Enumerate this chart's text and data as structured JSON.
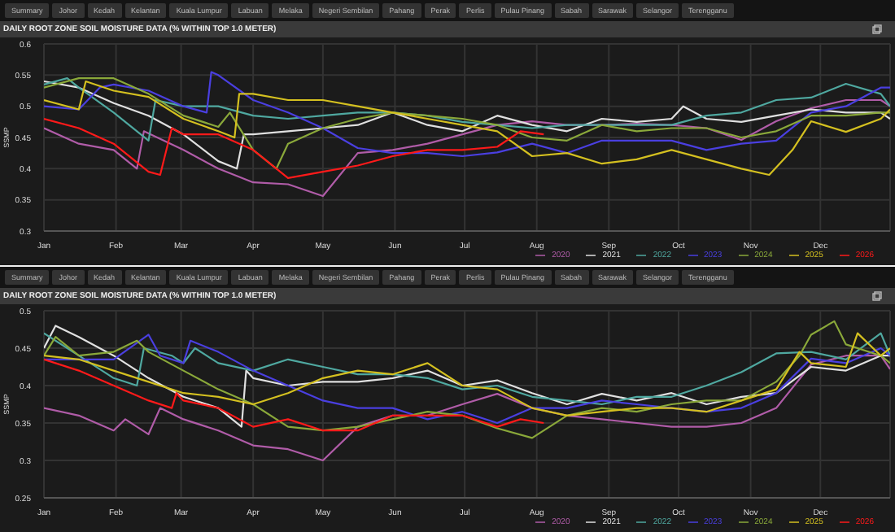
{
  "chart_data": [
    {
      "type": "line",
      "title": "DAILY ROOT ZONE SOIL MOISTURE DATA (% WITHIN TOP 1.0 METER)",
      "ylabel": "SSMP",
      "annotations": [
        "Summary",
        "Johor",
        "Kedah",
        "Kelantan",
        "Kuala Lumpur",
        "Labuan",
        "Melaka",
        "Negeri Sembilan",
        "Pahang",
        "Perak",
        "Perlis",
        "Pulau Pinang",
        "Sabah",
        "Sarawak",
        "Selangor",
        "Terengganu"
      ],
      "xlim": [
        "--01-01",
        "--12-31"
      ],
      "xticks": [
        {
          "value": "--01-01",
          "label": "Jan"
        },
        {
          "value": "--02-01",
          "label": "Feb"
        },
        {
          "value": "--03-01",
          "label": "Mar"
        },
        {
          "value": "--04-01",
          "label": "Apr"
        },
        {
          "value": "--05-01",
          "label": "May"
        },
        {
          "value": "--06-01",
          "label": "Jun"
        },
        {
          "value": "--07-01",
          "label": "Jul"
        },
        {
          "value": "--08-01",
          "label": "Aug"
        },
        {
          "value": "--09-01",
          "label": "Sep"
        },
        {
          "value": "--10-01",
          "label": "Oct"
        },
        {
          "value": "--11-01",
          "label": "Nov"
        },
        {
          "value": "--12-01",
          "label": "Dec"
        }
      ],
      "ylim": [
        0.3,
        0.6
      ],
      "yticks": [
        0.3,
        0.35,
        0.4,
        0.45,
        0.5,
        0.55,
        0.6
      ],
      "grid": true,
      "legend": "bottom right",
      "series": [
        {
          "name": "2020",
          "color": "#b05ca8",
          "x": [
            "--01-01",
            "--01-16",
            "--01-31",
            "--02-10",
            "--02-13",
            "--03-02",
            "--03-17",
            "--04-01",
            "--04-16",
            "--05-01",
            "--05-16",
            "--05-31",
            "--06-15",
            "--06-30",
            "--07-15",
            "--07-30",
            "--08-14",
            "--08-29",
            "--09-13",
            "--09-28",
            "--10-13",
            "--10-28",
            "--11-12",
            "--11-27",
            "--12-12",
            "--12-27",
            "--12-31"
          ],
          "values": [
            0.465,
            0.44,
            0.43,
            0.4,
            0.46,
            0.43,
            0.4,
            0.378,
            0.375,
            0.356,
            0.425,
            0.43,
            0.44,
            0.455,
            0.47,
            0.476,
            0.47,
            0.47,
            0.472,
            0.47,
            0.465,
            0.446,
            0.476,
            0.497,
            0.51,
            0.51,
            0.5
          ]
        },
        {
          "name": "2021",
          "color": "#e0e0e0",
          "x": [
            "--01-01",
            "--01-16",
            "--01-31",
            "--02-15",
            "--03-02",
            "--03-17",
            "--03-25",
            "--03-28",
            "--04-01",
            "--04-16",
            "--05-01",
            "--05-16",
            "--05-31",
            "--06-15",
            "--06-30",
            "--07-15",
            "--07-30",
            "--08-14",
            "--08-29",
            "--09-13",
            "--09-28",
            "--10-03",
            "--10-13",
            "--10-28",
            "--11-12",
            "--11-27",
            "--12-12",
            "--12-27",
            "--12-31"
          ],
          "values": [
            0.54,
            0.53,
            0.505,
            0.485,
            0.455,
            0.412,
            0.4,
            0.455,
            0.455,
            0.46,
            0.465,
            0.47,
            0.49,
            0.47,
            0.46,
            0.485,
            0.47,
            0.46,
            0.48,
            0.475,
            0.48,
            0.5,
            0.48,
            0.475,
            0.485,
            0.495,
            0.49,
            0.49,
            0.48
          ]
        },
        {
          "name": "2022",
          "color": "#4fa8a0",
          "x": [
            "--01-01",
            "--01-11",
            "--01-16",
            "--01-31",
            "--02-15",
            "--02-18",
            "--03-02",
            "--03-17",
            "--04-01",
            "--04-16",
            "--05-01",
            "--05-16",
            "--05-31",
            "--06-15",
            "--06-30",
            "--07-15",
            "--07-30",
            "--08-14",
            "--08-29",
            "--09-13",
            "--09-28",
            "--10-13",
            "--10-28",
            "--11-12",
            "--11-27",
            "--12-12",
            "--12-27",
            "--12-31"
          ],
          "values": [
            0.535,
            0.545,
            0.53,
            0.49,
            0.445,
            0.51,
            0.5,
            0.5,
            0.485,
            0.48,
            0.485,
            0.49,
            0.49,
            0.485,
            0.475,
            0.47,
            0.465,
            0.47,
            0.47,
            0.47,
            0.47,
            0.485,
            0.49,
            0.51,
            0.514,
            0.536,
            0.52,
            0.5
          ]
        },
        {
          "name": "2023",
          "color": "#4a3fe0",
          "x": [
            "--01-01",
            "--01-16",
            "--01-25",
            "--01-31",
            "--02-15",
            "--03-02",
            "--03-12",
            "--03-14",
            "--03-17",
            "--04-01",
            "--04-16",
            "--05-01",
            "--05-16",
            "--05-31",
            "--06-15",
            "--06-30",
            "--07-15",
            "--07-30",
            "--08-14",
            "--08-29",
            "--09-13",
            "--09-28",
            "--10-13",
            "--10-28",
            "--11-12",
            "--11-27",
            "--12-12",
            "--12-27",
            "--12-31"
          ],
          "values": [
            0.5,
            0.495,
            0.53,
            0.535,
            0.525,
            0.5,
            0.49,
            0.555,
            0.55,
            0.51,
            0.49,
            0.465,
            0.433,
            0.425,
            0.425,
            0.42,
            0.426,
            0.44,
            0.425,
            0.445,
            0.445,
            0.445,
            0.43,
            0.44,
            0.445,
            0.49,
            0.5,
            0.53,
            0.53
          ]
        },
        {
          "name": "2024",
          "color": "#8aa83a",
          "x": [
            "--01-01",
            "--01-16",
            "--01-31",
            "--02-15",
            "--03-02",
            "--03-17",
            "--03-22",
            "--04-01",
            "--04-11",
            "--04-16",
            "--05-01",
            "--05-16",
            "--05-31",
            "--06-15",
            "--06-30",
            "--07-15",
            "--07-30",
            "--08-14",
            "--08-29",
            "--09-13",
            "--09-28",
            "--10-13",
            "--10-28",
            "--11-12",
            "--11-27",
            "--12-12",
            "--12-27",
            "--12-31"
          ],
          "values": [
            0.53,
            0.545,
            0.545,
            0.52,
            0.485,
            0.467,
            0.49,
            0.43,
            0.4,
            0.44,
            0.465,
            0.48,
            0.49,
            0.485,
            0.48,
            0.47,
            0.45,
            0.445,
            0.47,
            0.46,
            0.465,
            0.465,
            0.45,
            0.46,
            0.485,
            0.485,
            0.49,
            0.49
          ]
        },
        {
          "name": "2025",
          "color": "#d4c020",
          "x": [
            "--01-01",
            "--01-16",
            "--01-19",
            "--01-31",
            "--02-15",
            "--03-02",
            "--03-17",
            "--03-24",
            "--03-26",
            "--04-01",
            "--04-16",
            "--05-01",
            "--05-16",
            "--05-31",
            "--06-15",
            "--06-30",
            "--07-15",
            "--07-30",
            "--08-14",
            "--08-29",
            "--09-13",
            "--09-28",
            "--10-13",
            "--10-28",
            "--11-09",
            "--11-19",
            "--11-27",
            "--12-12",
            "--12-27",
            "--12-31"
          ],
          "values": [
            0.51,
            0.495,
            0.54,
            0.525,
            0.515,
            0.48,
            0.46,
            0.45,
            0.52,
            0.52,
            0.51,
            0.51,
            0.5,
            0.49,
            0.48,
            0.47,
            0.46,
            0.42,
            0.425,
            0.408,
            0.415,
            0.43,
            0.415,
            0.4,
            0.39,
            0.43,
            0.476,
            0.459,
            0.48,
            0.495
          ]
        },
        {
          "name": "2026",
          "color": "#ff1a1a",
          "x": [
            "--01-01",
            "--01-16",
            "--01-31",
            "--02-15",
            "--02-20",
            "--02-25",
            "--03-02",
            "--03-17",
            "--04-01",
            "--04-16",
            "--05-01",
            "--05-16",
            "--05-31",
            "--06-15",
            "--06-30",
            "--07-15",
            "--07-25",
            "--08-04"
          ],
          "values": [
            0.48,
            0.465,
            0.44,
            0.395,
            0.39,
            0.465,
            0.455,
            0.455,
            0.43,
            0.385,
            0.395,
            0.405,
            0.42,
            0.43,
            0.43,
            0.435,
            0.46,
            0.455
          ]
        }
      ]
    },
    {
      "type": "line",
      "title": "DAILY ROOT ZONE SOIL MOISTURE DATA (% WITHIN TOP 1.0 METER)",
      "ylabel": "SSMP",
      "annotations": [
        "Summary",
        "Johor",
        "Kedah",
        "Kelantan",
        "Kuala Lumpur",
        "Labuan",
        "Melaka",
        "Negeri Sembilan",
        "Pahang",
        "Perak",
        "Perlis",
        "Pulau Pinang",
        "Sabah",
        "Sarawak",
        "Selangor",
        "Terengganu"
      ],
      "xlim": [
        "--01-01",
        "--12-31"
      ],
      "xticks": [
        {
          "value": "--01-01",
          "label": "Jan"
        },
        {
          "value": "--02-01",
          "label": "Feb"
        },
        {
          "value": "--03-01",
          "label": "Mar"
        },
        {
          "value": "--04-01",
          "label": "Apr"
        },
        {
          "value": "--05-01",
          "label": "May"
        },
        {
          "value": "--06-01",
          "label": "Jun"
        },
        {
          "value": "--07-01",
          "label": "Jul"
        },
        {
          "value": "--08-01",
          "label": "Aug"
        },
        {
          "value": "--09-01",
          "label": "Sep"
        },
        {
          "value": "--10-01",
          "label": "Oct"
        },
        {
          "value": "--11-01",
          "label": "Nov"
        },
        {
          "value": "--12-01",
          "label": "Dec"
        }
      ],
      "ylim": [
        0.25,
        0.5
      ],
      "yticks": [
        0.25,
        0.3,
        0.35,
        0.4,
        0.45,
        0.5
      ],
      "grid": true,
      "legend": "bottom right",
      "series": [
        {
          "name": "2020",
          "color": "#b05ca8",
          "x": [
            "--01-01",
            "--01-16",
            "--01-31",
            "--02-05",
            "--02-15",
            "--02-20",
            "--03-02",
            "--03-17",
            "--04-01",
            "--04-16",
            "--05-01",
            "--05-16",
            "--05-31",
            "--06-15",
            "--06-30",
            "--07-15",
            "--07-30",
            "--08-14",
            "--08-29",
            "--09-13",
            "--09-28",
            "--10-13",
            "--10-28",
            "--11-12",
            "--11-27",
            "--12-12",
            "--12-27",
            "--12-31"
          ],
          "values": [
            0.37,
            0.36,
            0.34,
            0.355,
            0.335,
            0.37,
            0.355,
            0.34,
            0.32,
            0.315,
            0.3,
            0.345,
            0.36,
            0.36,
            0.375,
            0.389,
            0.37,
            0.36,
            0.355,
            0.35,
            0.345,
            0.345,
            0.35,
            0.37,
            0.428,
            0.44,
            0.44,
            0.422
          ]
        },
        {
          "name": "2021",
          "color": "#e0e0e0",
          "x": [
            "--01-01",
            "--01-06",
            "--01-16",
            "--01-31",
            "--02-15",
            "--03-02",
            "--03-17",
            "--03-27",
            "--03-29",
            "--04-01",
            "--04-16",
            "--05-01",
            "--05-16",
            "--05-31",
            "--06-15",
            "--06-30",
            "--07-15",
            "--07-30",
            "--08-14",
            "--08-29",
            "--09-13",
            "--09-28",
            "--10-13",
            "--10-28",
            "--11-12",
            "--11-27",
            "--12-12",
            "--12-27",
            "--12-31"
          ],
          "values": [
            0.45,
            0.48,
            0.465,
            0.44,
            0.41,
            0.385,
            0.37,
            0.345,
            0.42,
            0.41,
            0.4,
            0.405,
            0.405,
            0.41,
            0.42,
            0.4,
            0.407,
            0.39,
            0.375,
            0.389,
            0.38,
            0.39,
            0.375,
            0.385,
            0.39,
            0.425,
            0.42,
            0.44,
            0.44
          ]
        },
        {
          "name": "2022",
          "color": "#4fa8a0",
          "x": [
            "--01-01",
            "--01-16",
            "--01-31",
            "--02-10",
            "--02-13",
            "--02-25",
            "--03-02",
            "--03-07",
            "--03-17",
            "--04-01",
            "--04-16",
            "--05-01",
            "--05-16",
            "--05-31",
            "--06-15",
            "--06-30",
            "--07-15",
            "--07-30",
            "--08-14",
            "--08-29",
            "--09-13",
            "--09-28",
            "--10-13",
            "--10-28",
            "--11-12",
            "--11-27",
            "--12-12",
            "--12-27",
            "--12-31"
          ],
          "values": [
            0.47,
            0.44,
            0.41,
            0.4,
            0.45,
            0.44,
            0.43,
            0.45,
            0.43,
            0.42,
            0.435,
            0.425,
            0.415,
            0.415,
            0.41,
            0.395,
            0.4,
            0.385,
            0.38,
            0.375,
            0.385,
            0.385,
            0.4,
            0.418,
            0.443,
            0.445,
            0.435,
            0.47,
            0.44
          ]
        },
        {
          "name": "2023",
          "color": "#4a3fe0",
          "x": [
            "--01-01",
            "--01-16",
            "--01-31",
            "--02-15",
            "--02-20",
            "--03-02",
            "--03-05",
            "--03-17",
            "--04-01",
            "--04-16",
            "--05-01",
            "--05-16",
            "--05-31",
            "--06-15",
            "--06-30",
            "--07-15",
            "--07-30",
            "--08-14",
            "--08-29",
            "--09-13",
            "--09-28",
            "--10-13",
            "--10-28",
            "--11-12",
            "--11-27",
            "--12-12",
            "--12-27",
            "--12-31"
          ],
          "values": [
            0.435,
            0.435,
            0.435,
            0.468,
            0.44,
            0.43,
            0.46,
            0.445,
            0.42,
            0.4,
            0.38,
            0.37,
            0.37,
            0.355,
            0.365,
            0.35,
            0.37,
            0.37,
            0.38,
            0.375,
            0.37,
            0.365,
            0.37,
            0.39,
            0.436,
            0.43,
            0.45,
            0.44
          ]
        },
        {
          "name": "2024",
          "color": "#8aa83a",
          "x": [
            "--01-01",
            "--01-06",
            "--01-16",
            "--01-31",
            "--02-10",
            "--02-15",
            "--03-02",
            "--03-17",
            "--04-01",
            "--04-16",
            "--05-01",
            "--05-16",
            "--05-31",
            "--06-15",
            "--06-30",
            "--07-15",
            "--07-30",
            "--08-14",
            "--08-29",
            "--09-13",
            "--09-28",
            "--10-13",
            "--10-28",
            "--11-12",
            "--11-22",
            "--11-27",
            "--12-07",
            "--12-12",
            "--12-27",
            "--12-31"
          ],
          "values": [
            0.44,
            0.465,
            0.44,
            0.445,
            0.46,
            0.445,
            0.42,
            0.395,
            0.375,
            0.345,
            0.34,
            0.345,
            0.355,
            0.365,
            0.36,
            0.343,
            0.33,
            0.36,
            0.37,
            0.365,
            0.375,
            0.38,
            0.38,
            0.405,
            0.44,
            0.468,
            0.486,
            0.455,
            0.44,
            0.43
          ]
        },
        {
          "name": "2025",
          "color": "#d4c020",
          "x": [
            "--01-01",
            "--01-16",
            "--01-31",
            "--02-15",
            "--03-02",
            "--03-17",
            "--04-01",
            "--04-16",
            "--05-01",
            "--05-16",
            "--05-31",
            "--06-15",
            "--06-30",
            "--07-15",
            "--07-30",
            "--08-14",
            "--08-29",
            "--09-13",
            "--09-28",
            "--10-13",
            "--10-28",
            "--11-12",
            "--11-22",
            "--11-27",
            "--12-12",
            "--12-17",
            "--12-27",
            "--12-31"
          ],
          "values": [
            0.44,
            0.435,
            0.42,
            0.405,
            0.39,
            0.385,
            0.375,
            0.39,
            0.41,
            0.42,
            0.415,
            0.43,
            0.4,
            0.395,
            0.37,
            0.36,
            0.365,
            0.37,
            0.37,
            0.365,
            0.38,
            0.395,
            0.445,
            0.43,
            0.425,
            0.47,
            0.44,
            0.45
          ]
        },
        {
          "name": "2026",
          "color": "#ff1a1a",
          "x": [
            "--01-01",
            "--01-16",
            "--01-31",
            "--02-15",
            "--02-25",
            "--02-27",
            "--03-02",
            "--03-17",
            "--04-01",
            "--04-16",
            "--05-01",
            "--05-16",
            "--05-31",
            "--06-15",
            "--06-30",
            "--07-15",
            "--07-25",
            "--08-04"
          ],
          "values": [
            0.435,
            0.42,
            0.4,
            0.38,
            0.37,
            0.39,
            0.38,
            0.37,
            0.345,
            0.355,
            0.34,
            0.34,
            0.36,
            0.36,
            0.36,
            0.345,
            0.355,
            0.35
          ]
        }
      ]
    }
  ]
}
